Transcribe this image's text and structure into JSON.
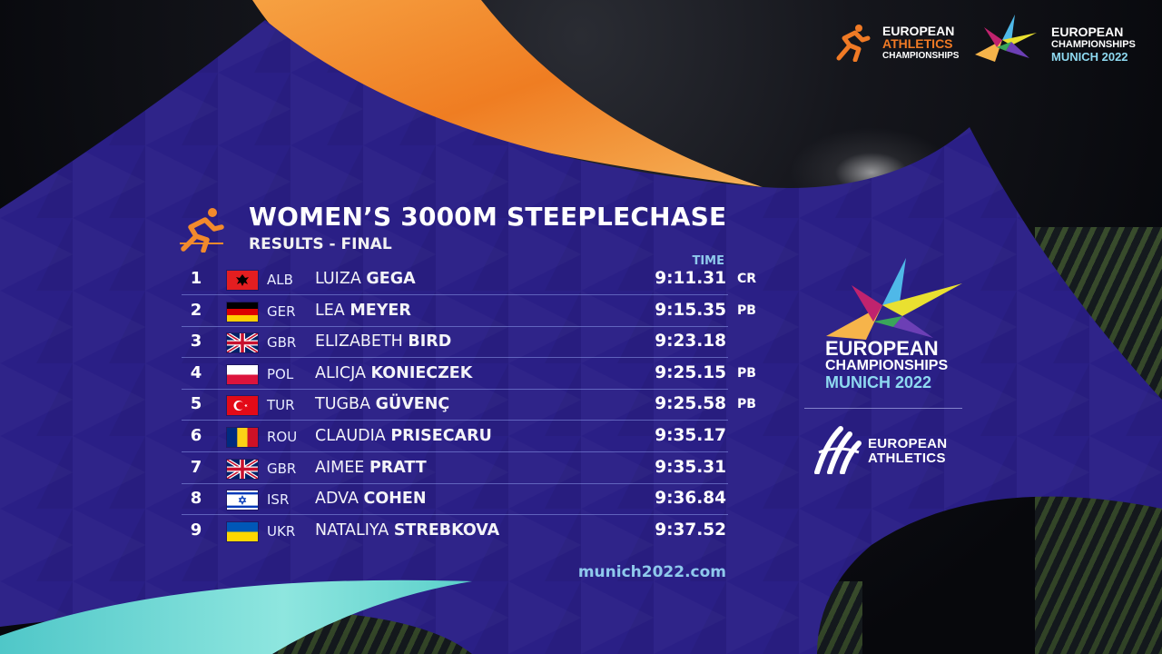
{
  "header": {
    "eac_logo": {
      "icon": "runner-icon",
      "lines": [
        "EUROPEAN",
        "ATHLETICS",
        "CHAMPIONSHIPS"
      ]
    },
    "ec_logo": {
      "icon": "star-icon",
      "lines": [
        "EUROPEAN",
        "CHAMPIONSHIPS",
        "MUNICH 2022"
      ]
    }
  },
  "event": {
    "title": "WOMEN’S 3000M STEEPLECHASE",
    "subtitle": "RESULTS - FINAL",
    "time_header": "TIME",
    "icon": "steeplechase-runner-icon"
  },
  "results": [
    {
      "rank": "1",
      "flag": "albania",
      "nat": "ALB",
      "first": "LUIZA",
      "last": "GEGA",
      "time": "9:11.31",
      "record": "CR"
    },
    {
      "rank": "2",
      "flag": "germany",
      "nat": "GER",
      "first": "LEA",
      "last": "MEYER",
      "time": "9:15.35",
      "record": "PB"
    },
    {
      "rank": "3",
      "flag": "great-britain",
      "nat": "GBR",
      "first": "ELIZABETH",
      "last": "BIRD",
      "time": "9:23.18",
      "record": ""
    },
    {
      "rank": "4",
      "flag": "poland",
      "nat": "POL",
      "first": "ALICJA",
      "last": "KONIECZEK",
      "time": "9:25.15",
      "record": "PB"
    },
    {
      "rank": "5",
      "flag": "turkey",
      "nat": "TUR",
      "first": "TUGBA",
      "last": "GÜVENÇ",
      "time": "9:25.58",
      "record": "PB"
    },
    {
      "rank": "6",
      "flag": "romania",
      "nat": "ROU",
      "first": "CLAUDIA",
      "last": "PRISECARU",
      "time": "9:35.17",
      "record": ""
    },
    {
      "rank": "7",
      "flag": "great-britain",
      "nat": "GBR",
      "first": "AIMEE",
      "last": "PRATT",
      "time": "9:35.31",
      "record": ""
    },
    {
      "rank": "8",
      "flag": "israel",
      "nat": "ISR",
      "first": "ADVA",
      "last": "COHEN",
      "time": "9:36.84",
      "record": ""
    },
    {
      "rank": "9",
      "flag": "ukraine",
      "nat": "UKR",
      "first": "NATALIYA",
      "last": "STREBKOVA",
      "time": "9:37.52",
      "record": ""
    }
  ],
  "footer": {
    "website": "munich2022.com"
  },
  "side_panel": {
    "ec_logo": {
      "lines": [
        "EUROPEAN",
        "CHAMPIONSHIPS",
        "MUNICH 2022"
      ]
    },
    "ea_logo": {
      "icon": "european-athletics-icon",
      "lines": [
        "EUROPEAN",
        "ATHLETICS"
      ]
    }
  },
  "colors": {
    "panel": "#2a1f86",
    "orange": "#f28a2c",
    "teal": "#6fd6d0",
    "accent_blue": "#8fc9ec",
    "row_divider": "#a0b4ff"
  }
}
